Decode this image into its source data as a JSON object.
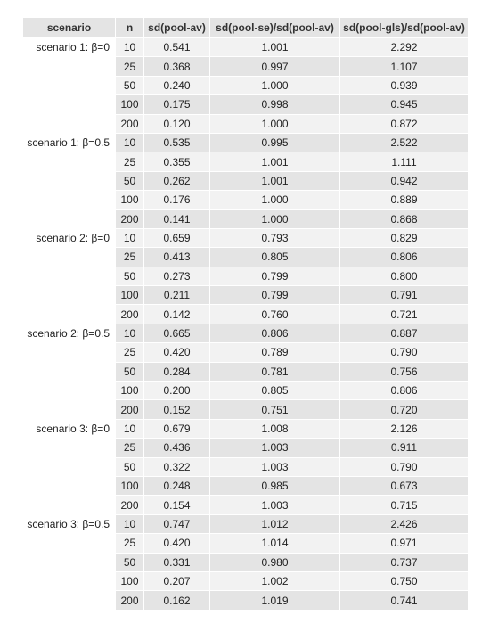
{
  "table": {
    "headers": [
      "scenario",
      "n",
      "sd(pool-av)",
      "sd(pool-se)/sd(pool-av)",
      "sd(pool-gls)/sd(pool-av)"
    ],
    "rows": [
      {
        "scenario": "scenario 1: β=0",
        "n": "10",
        "sd_pool_av": "0.541",
        "ratio_se": "1.001",
        "ratio_gls": "2.292"
      },
      {
        "scenario": "",
        "n": "25",
        "sd_pool_av": "0.368",
        "ratio_se": "0.997",
        "ratio_gls": "1.107"
      },
      {
        "scenario": "",
        "n": "50",
        "sd_pool_av": "0.240",
        "ratio_se": "1.000",
        "ratio_gls": "0.939"
      },
      {
        "scenario": "",
        "n": "100",
        "sd_pool_av": "0.175",
        "ratio_se": "0.998",
        "ratio_gls": "0.945"
      },
      {
        "scenario": "",
        "n": "200",
        "sd_pool_av": "0.120",
        "ratio_se": "1.000",
        "ratio_gls": "0.872"
      },
      {
        "scenario": "scenario 1: β=0.5",
        "n": "10",
        "sd_pool_av": "0.535",
        "ratio_se": "0.995",
        "ratio_gls": "2.522"
      },
      {
        "scenario": "",
        "n": "25",
        "sd_pool_av": "0.355",
        "ratio_se": "1.001",
        "ratio_gls": "1.111"
      },
      {
        "scenario": "",
        "n": "50",
        "sd_pool_av": "0.262",
        "ratio_se": "1.001",
        "ratio_gls": "0.942"
      },
      {
        "scenario": "",
        "n": "100",
        "sd_pool_av": "0.176",
        "ratio_se": "1.000",
        "ratio_gls": "0.889"
      },
      {
        "scenario": "",
        "n": "200",
        "sd_pool_av": "0.141",
        "ratio_se": "1.000",
        "ratio_gls": "0.868"
      },
      {
        "scenario": "scenario 2: β=0",
        "n": "10",
        "sd_pool_av": "0.659",
        "ratio_se": "0.793",
        "ratio_gls": "0.829"
      },
      {
        "scenario": "",
        "n": "25",
        "sd_pool_av": "0.413",
        "ratio_se": "0.805",
        "ratio_gls": "0.806"
      },
      {
        "scenario": "",
        "n": "50",
        "sd_pool_av": "0.273",
        "ratio_se": "0.799",
        "ratio_gls": "0.800"
      },
      {
        "scenario": "",
        "n": "100",
        "sd_pool_av": "0.211",
        "ratio_se": "0.799",
        "ratio_gls": "0.791"
      },
      {
        "scenario": "",
        "n": "200",
        "sd_pool_av": "0.142",
        "ratio_se": "0.760",
        "ratio_gls": "0.721"
      },
      {
        "scenario": "scenario 2: β=0.5",
        "n": "10",
        "sd_pool_av": "0.665",
        "ratio_se": "0.806",
        "ratio_gls": "0.887"
      },
      {
        "scenario": "",
        "n": "25",
        "sd_pool_av": "0.420",
        "ratio_se": "0.789",
        "ratio_gls": "0.790"
      },
      {
        "scenario": "",
        "n": "50",
        "sd_pool_av": "0.284",
        "ratio_se": "0.781",
        "ratio_gls": "0.756"
      },
      {
        "scenario": "",
        "n": "100",
        "sd_pool_av": "0.200",
        "ratio_se": "0.805",
        "ratio_gls": "0.806"
      },
      {
        "scenario": "",
        "n": "200",
        "sd_pool_av": "0.152",
        "ratio_se": "0.751",
        "ratio_gls": "0.720"
      },
      {
        "scenario": "scenario 3: β=0",
        "n": "10",
        "sd_pool_av": "0.679",
        "ratio_se": "1.008",
        "ratio_gls": "2.126"
      },
      {
        "scenario": "",
        "n": "25",
        "sd_pool_av": "0.436",
        "ratio_se": "1.003",
        "ratio_gls": "0.911"
      },
      {
        "scenario": "",
        "n": "50",
        "sd_pool_av": "0.322",
        "ratio_se": "1.003",
        "ratio_gls": "0.790"
      },
      {
        "scenario": "",
        "n": "100",
        "sd_pool_av": "0.248",
        "ratio_se": "0.985",
        "ratio_gls": "0.673"
      },
      {
        "scenario": "",
        "n": "200",
        "sd_pool_av": "0.154",
        "ratio_se": "1.003",
        "ratio_gls": "0.715"
      },
      {
        "scenario": "scenario 3: β=0.5",
        "n": "10",
        "sd_pool_av": "0.747",
        "ratio_se": "1.012",
        "ratio_gls": "2.426"
      },
      {
        "scenario": "",
        "n": "25",
        "sd_pool_av": "0.420",
        "ratio_se": "1.014",
        "ratio_gls": "0.971"
      },
      {
        "scenario": "",
        "n": "50",
        "sd_pool_av": "0.331",
        "ratio_se": "0.980",
        "ratio_gls": "0.737"
      },
      {
        "scenario": "",
        "n": "100",
        "sd_pool_av": "0.207",
        "ratio_se": "1.002",
        "ratio_gls": "0.750"
      },
      {
        "scenario": "",
        "n": "200",
        "sd_pool_av": "0.162",
        "ratio_se": "1.019",
        "ratio_gls": "0.741"
      }
    ]
  },
  "colors": {
    "header_bg": "#e4e4e4",
    "row_odd_bg": "#f2f2f2",
    "row_even_bg": "#e4e4e4",
    "text": "#222222"
  }
}
